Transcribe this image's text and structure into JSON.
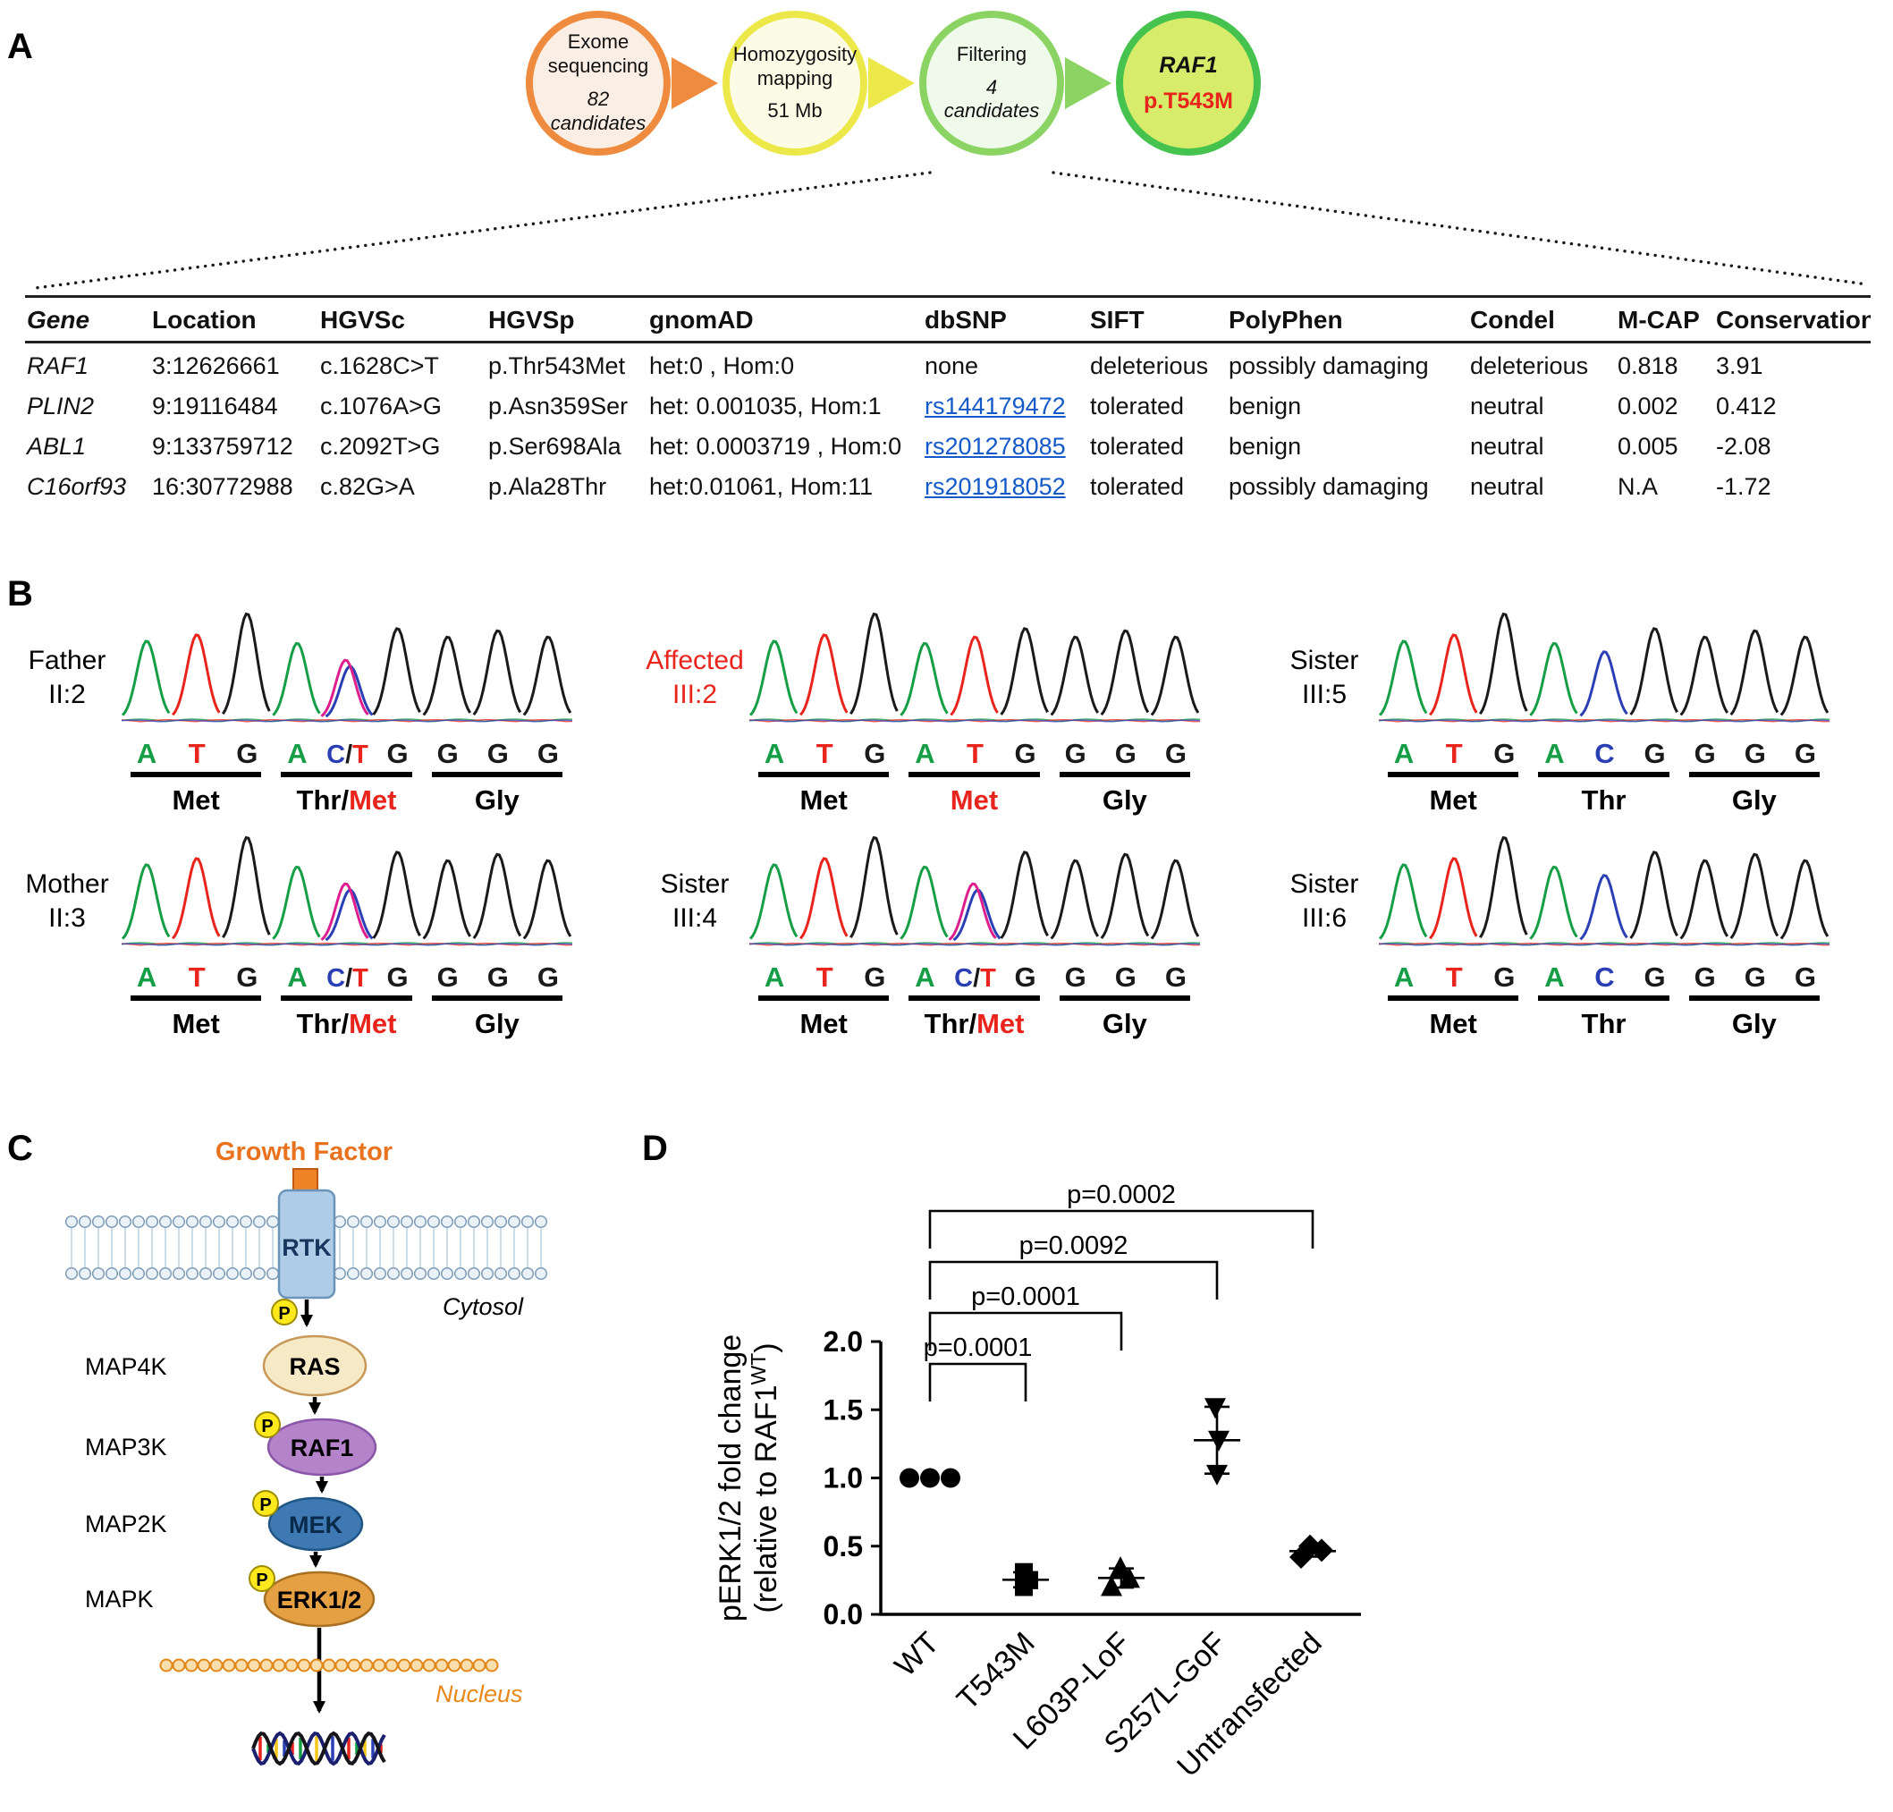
{
  "figure": {
    "panel_a": "A",
    "panel_b": "B",
    "panel_c": "C",
    "panel_d": "D"
  },
  "panelA": {
    "flow": [
      {
        "border": "#EF8B3E",
        "fill": "#FBEFE5",
        "lines": [
          {
            "t": "Exome"
          },
          {
            "t": "sequencing"
          },
          {
            "t": "82",
            "italic": true,
            "gap": true
          },
          {
            "t": "candidates",
            "italic": true
          }
        ]
      },
      {
        "border": "#EDE84A",
        "fill": "#FCFCE6",
        "lines": [
          {
            "t": "Homozygosity"
          },
          {
            "t": "mapping"
          },
          {
            "t": "51 Mb",
            "gap": true
          }
        ]
      },
      {
        "border": "#8BD463",
        "fill": "#EFFAEA",
        "lines": [
          {
            "t": "Filtering"
          },
          {
            "t": "4",
            "italic": true,
            "gap": true
          },
          {
            "t": "candidates",
            "italic": true
          }
        ]
      },
      {
        "border": "#46C24E",
        "fill": "#D6EC6A",
        "lines": [
          {
            "t": "RAF1",
            "bold": true,
            "italic": true,
            "size": 25
          },
          {
            "t": "p.T543M",
            "bold": true,
            "color": "#E8241C",
            "gap": true,
            "size": 25
          }
        ]
      }
    ],
    "table": {
      "headers": [
        "Gene",
        "Location",
        "HGVSc",
        "HGVSp",
        "gnomAD",
        "dbSNP",
        "SIFT",
        "PolyPhen",
        "Condel",
        "M-CAP",
        "Conservation"
      ],
      "rows": [
        [
          "RAF1",
          "3:12626661",
          "c.1628C>T",
          "p.Thr543Met",
          "het:0 , Hom:0",
          "none",
          "deleterious",
          "possibly damaging",
          "deleterious",
          "0.818",
          "3.91"
        ],
        [
          "PLIN2",
          "9:19116484",
          "c.1076A>G",
          "p.Asn359Ser",
          "het: 0.001035, Hom:1",
          "rs144179472",
          "tolerated",
          "benign",
          "neutral",
          "0.002",
          "0.412"
        ],
        [
          "ABL1",
          "9:133759712",
          "c.2092T>G",
          "p.Ser698Ala",
          "het: 0.0003719 , Hom:0",
          "rs201278085",
          "tolerated",
          "benign",
          "neutral",
          "0.005",
          "-2.08"
        ],
        [
          "C16orf93",
          "16:30772988",
          "c.82G>A",
          "p.Ala28Thr",
          "het:0.01061, Hom:11",
          "rs201918052",
          "tolerated",
          "possibly damaging",
          "neutral",
          "N.A",
          "-1.72"
        ]
      ],
      "link_color": "#1459C8"
    }
  },
  "panelB": {
    "base_colors": {
      "A": "#169E47",
      "T": "#E8241C",
      "G": "#1A1A1A",
      "C": "#2B3FB5",
      "/": "#1A1A1A",
      "het": "#DD1F8D"
    },
    "blocks": [
      {
        "who": "Father",
        "who2": "II:2",
        "who_color": "#000000",
        "bases": [
          "A",
          "T",
          "G",
          "A",
          "C/T",
          "G",
          "G",
          "G",
          "G"
        ],
        "aa": [
          [
            [
              "Met",
              "#000000"
            ]
          ],
          [
            [
              "Thr/",
              "#000000"
            ],
            [
              "Met",
              "#E8241C"
            ]
          ],
          [
            [
              "Gly",
              "#000000"
            ]
          ]
        ]
      },
      {
        "who": "Affected",
        "who2": "III:2",
        "who_color": "#E8241C",
        "bases": [
          "A",
          "T",
          "G",
          "A",
          "T",
          "G",
          "G",
          "G",
          "G"
        ],
        "aa": [
          [
            [
              "Met",
              "#000000"
            ]
          ],
          [
            [
              "Met",
              "#E8241C"
            ]
          ],
          [
            [
              "Gly",
              "#000000"
            ]
          ]
        ]
      },
      {
        "who": "Sister",
        "who2": "III:5",
        "who_color": "#000000",
        "bases": [
          "A",
          "T",
          "G",
          "A",
          "C",
          "G",
          "G",
          "G",
          "G"
        ],
        "aa": [
          [
            [
              "Met",
              "#000000"
            ]
          ],
          [
            [
              "Thr",
              "#000000"
            ]
          ],
          [
            [
              "Gly",
              "#000000"
            ]
          ]
        ]
      },
      {
        "who": "Mother",
        "who2": "II:3",
        "who_color": "#000000",
        "bases": [
          "A",
          "T",
          "G",
          "A",
          "C/T",
          "G",
          "G",
          "G",
          "G"
        ],
        "aa": [
          [
            [
              "Met",
              "#000000"
            ]
          ],
          [
            [
              "Thr/",
              "#000000"
            ],
            [
              "Met",
              "#E8241C"
            ]
          ],
          [
            [
              "Gly",
              "#000000"
            ]
          ]
        ]
      },
      {
        "who": "Sister",
        "who2": "III:4",
        "who_color": "#000000",
        "bases": [
          "A",
          "T",
          "G",
          "A",
          "C/T",
          "G",
          "G",
          "G",
          "G"
        ],
        "aa": [
          [
            [
              "Met",
              "#000000"
            ]
          ],
          [
            [
              "Thr/",
              "#000000"
            ],
            [
              "Met",
              "#E8241C"
            ]
          ],
          [
            [
              "Gly",
              "#000000"
            ]
          ]
        ]
      },
      {
        "who": "Sister",
        "who2": "III:6",
        "who_color": "#000000",
        "bases": [
          "A",
          "T",
          "G",
          "A",
          "C",
          "G",
          "G",
          "G",
          "G"
        ],
        "aa": [
          [
            [
              "Met",
              "#000000"
            ]
          ],
          [
            [
              "Thr",
              "#000000"
            ]
          ],
          [
            [
              "Gly",
              "#000000"
            ]
          ]
        ]
      }
    ]
  },
  "panelC": {
    "growth_factor": "Growth Factor",
    "rtk": "RTK",
    "cytosol": "Cytosol",
    "nucleus": "Nucleus",
    "p_label": "P",
    "kinase_classes": [
      "MAP4K",
      "MAP3K",
      "MAP2K",
      "MAPK"
    ],
    "node_ras": "RAS",
    "node_raf1": "RAF1",
    "node_mek": "MEK",
    "node_erk": "ERK1/2"
  },
  "chart_data": {
    "type": "scatter",
    "title": "",
    "ylabel_line1": "pERK1/2 fold change",
    "ylabel_line2_pre": "(relative to RAF1",
    "ylabel_sup": "WT",
    "ylabel_line2_post": ")",
    "categories": [
      "WT",
      "T543M",
      "L603P-LoF",
      "S257L-GoF",
      "Untransfected"
    ],
    "series": [
      {
        "name": "WT",
        "marker": "circle",
        "values": [
          1.0,
          1.0,
          1.0
        ],
        "show_error": false
      },
      {
        "name": "T543M",
        "marker": "square",
        "values": [
          0.2,
          0.25,
          0.31
        ],
        "show_error": true
      },
      {
        "name": "L603P-LoF",
        "marker": "triangle-up",
        "values": [
          0.2,
          0.26,
          0.34
        ],
        "show_error": true
      },
      {
        "name": "S257L-GoF",
        "marker": "triangle-down",
        "values": [
          1.03,
          1.28,
          1.52
        ],
        "show_error": true
      },
      {
        "name": "Untransfected",
        "marker": "diamond",
        "values": [
          0.42,
          0.47,
          0.5
        ],
        "show_error": true
      }
    ],
    "ylim": [
      0.0,
      2.0
    ],
    "yticks": [
      "0.0",
      "0.5",
      "1.0",
      "1.5",
      "2.0"
    ],
    "grid": false,
    "legend": "none",
    "axis_color": "#000000",
    "marker_color": "#000000",
    "comparisons": [
      {
        "from": "WT",
        "to": "T543M",
        "p": "p=0.0001",
        "level": 1
      },
      {
        "from": "WT",
        "to": "L603P-LoF",
        "p": "p=0.0001",
        "level": 2
      },
      {
        "from": "WT",
        "to": "S257L-GoF",
        "p": "p=0.0092",
        "level": 3
      },
      {
        "from": "WT",
        "to": "Untransfected",
        "p": "p=0.0002",
        "level": 4
      }
    ]
  }
}
